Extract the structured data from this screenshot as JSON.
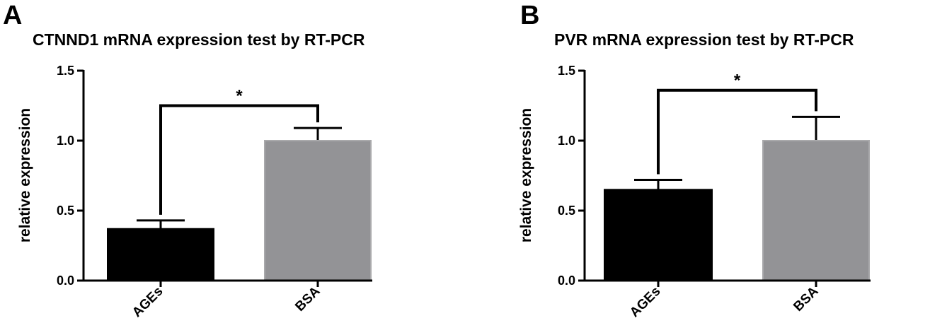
{
  "chart_data": [
    {
      "type": "bar",
      "panel_label": "A",
      "title": "CTNND1 mRNA expression test by RT-PCR",
      "ylabel": "relative expression",
      "xlabel": "",
      "ylim": [
        0,
        1.5
      ],
      "yticks": [
        "0.0",
        "0.5",
        "1.0",
        "1.5"
      ],
      "categories": [
        "AGEs",
        "BSA"
      ],
      "values": [
        0.37,
        1.0
      ],
      "errors": [
        0.06,
        0.09
      ],
      "colors": [
        "#000000",
        "#939396"
      ],
      "significance": {
        "between": [
          0,
          1
        ],
        "label": "*",
        "level": 1.25
      }
    },
    {
      "type": "bar",
      "panel_label": "B",
      "title": "PVR mRNA expression test by RT-PCR",
      "ylabel": "relative expression",
      "xlabel": "",
      "ylim": [
        0,
        1.5
      ],
      "yticks": [
        "0.0",
        "0.5",
        "1.0",
        "1.5"
      ],
      "categories": [
        "AGEs",
        "BSA"
      ],
      "values": [
        0.65,
        1.0
      ],
      "errors": [
        0.07,
        0.17
      ],
      "colors": [
        "#000000",
        "#939396"
      ],
      "significance": {
        "between": [
          0,
          1
        ],
        "label": "*",
        "level": 1.36
      }
    }
  ]
}
